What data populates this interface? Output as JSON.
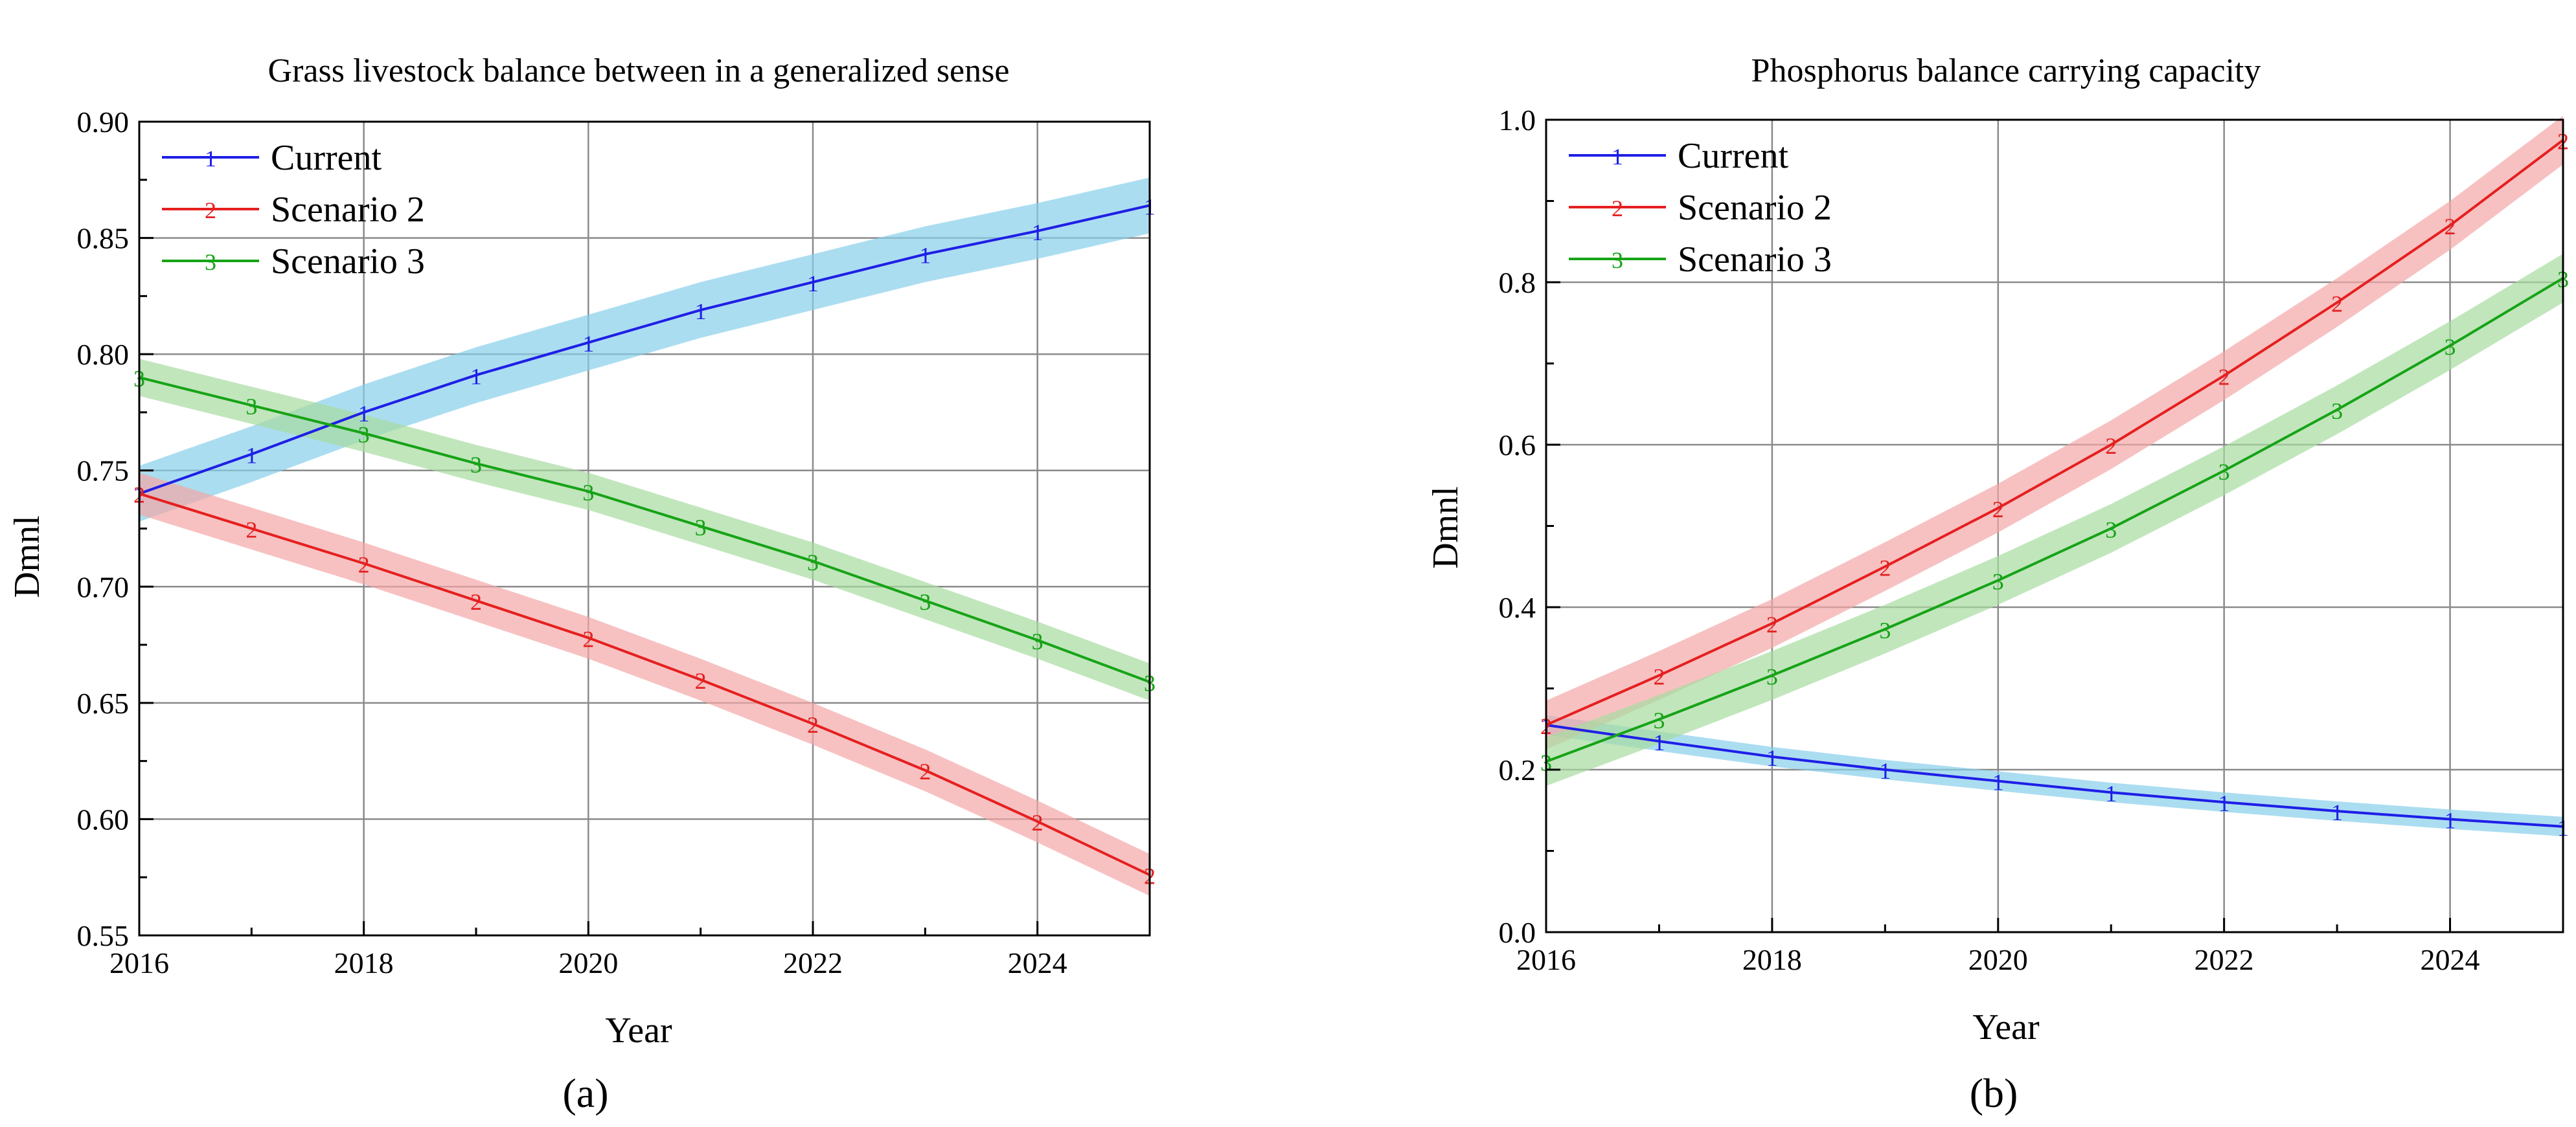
{
  "panel_labels": [
    "(a)",
    "(b)"
  ],
  "colors": {
    "current": "#1f1fe6",
    "scenario_2": "#e61f1f",
    "scenario_3": "#16a316",
    "current_band": "#87ceeb",
    "scenario_2_band": "#f4a6a6",
    "scenario_3_band": "#a6dca0",
    "grid": "#8a8a8a"
  },
  "chart_data": [
    {
      "type": "line",
      "title": "Grass livestock balance between in a generalized sense",
      "xlabel": "Year",
      "ylabel": "Dmnl",
      "xlim": [
        2016,
        2025
      ],
      "ylim": [
        0.55,
        0.9
      ],
      "xticks": [
        2016,
        2018,
        2020,
        2022,
        2024
      ],
      "yticks": [
        0.55,
        0.6,
        0.65,
        0.7,
        0.75,
        0.8,
        0.85,
        0.9
      ],
      "ytick_labels": [
        "0.55",
        "0.60",
        "0.65",
        "0.70",
        "0.75",
        "0.80",
        "0.85",
        "0.90"
      ],
      "grid": true,
      "legend_position": "top-left",
      "x": [
        2016,
        2017,
        2018,
        2019,
        2020,
        2021,
        2022,
        2023,
        2024,
        2025
      ],
      "series": [
        {
          "name": "Current",
          "marker": "1",
          "color_key": "current",
          "values": [
            0.74,
            0.757,
            0.775,
            0.791,
            0.805,
            0.819,
            0.831,
            0.843,
            0.853,
            0.864
          ],
          "band": 0.012
        },
        {
          "name": "Scenario 2",
          "marker": "2",
          "color_key": "scenario_2",
          "values": [
            0.74,
            0.725,
            0.71,
            0.694,
            0.678,
            0.66,
            0.641,
            0.621,
            0.599,
            0.576
          ],
          "band": 0.009
        },
        {
          "name": "Scenario 3",
          "marker": "3",
          "color_key": "scenario_3",
          "values": [
            0.79,
            0.778,
            0.766,
            0.753,
            0.741,
            0.726,
            0.711,
            0.694,
            0.677,
            0.659
          ],
          "band": 0.008
        }
      ]
    },
    {
      "type": "line",
      "title": "Phosphorus balance carrying capacity",
      "xlabel": "Year",
      "ylabel": "Dmnl",
      "xlim": [
        2016,
        2025
      ],
      "ylim": [
        0,
        1.0
      ],
      "xticks": [
        2016,
        2018,
        2020,
        2022,
        2024
      ],
      "yticks": [
        0,
        0.2,
        0.4,
        0.6,
        0.8,
        1.0
      ],
      "ytick_labels": [
        "0.0",
        "0.2",
        "0.4",
        "0.6",
        "0.8",
        "1.0"
      ],
      "grid": true,
      "legend_position": "top-left",
      "x": [
        2016,
        2017,
        2018,
        2019,
        2020,
        2021,
        2022,
        2023,
        2024,
        2025
      ],
      "series": [
        {
          "name": "Current",
          "marker": "1",
          "color_key": "current",
          "values": [
            0.255,
            0.235,
            0.216,
            0.2,
            0.186,
            0.172,
            0.16,
            0.149,
            0.139,
            0.13
          ],
          "band": 0.012
        },
        {
          "name": "Scenario 2",
          "marker": "2",
          "color_key": "scenario_2",
          "values": [
            0.255,
            0.316,
            0.38,
            0.45,
            0.522,
            0.6,
            0.685,
            0.775,
            0.87,
            0.975
          ],
          "band": 0.03
        },
        {
          "name": "Scenario 3",
          "marker": "3",
          "color_key": "scenario_3",
          "values": [
            0.21,
            0.262,
            0.316,
            0.373,
            0.433,
            0.497,
            0.568,
            0.643,
            0.722,
            0.805
          ],
          "band": 0.03
        }
      ]
    }
  ]
}
